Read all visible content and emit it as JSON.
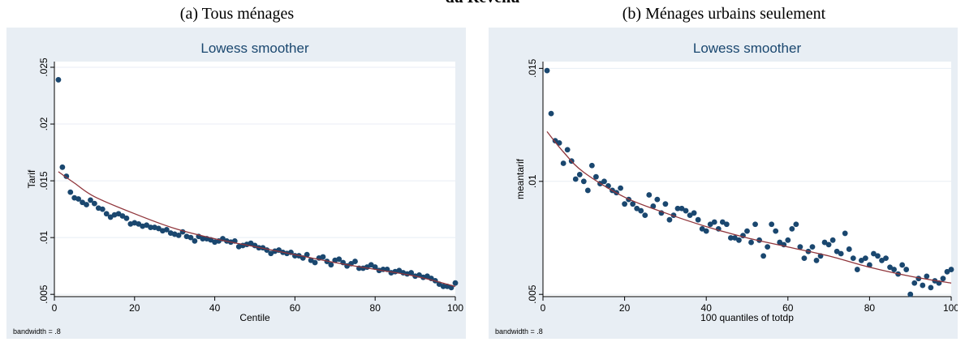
{
  "page": {
    "heading": "du Revenu"
  },
  "chart_data": [
    {
      "type": "scatter",
      "caption": "(a) Tous ménages",
      "title": "Lowess smoother",
      "xlabel": "Centile",
      "ylabel": "Tarif",
      "note": "bandwidth = .8",
      "xlim": [
        0,
        100
      ],
      "ylim": [
        0.0048,
        0.0255
      ],
      "xticks": [
        0,
        20,
        40,
        60,
        80,
        100
      ],
      "xtick_labels": [
        "0",
        "20",
        "40",
        "60",
        "80",
        "100"
      ],
      "yticks": [
        0.005,
        0.01,
        0.015,
        0.02,
        0.025
      ],
      "ytick_labels": [
        ".005",
        ".01",
        ".015",
        ".02",
        ".025"
      ],
      "grid": true,
      "colors": {
        "points": "#1a476f",
        "line": "#90353b",
        "title_band": "#e8eef4",
        "panel": "#ffffff"
      },
      "points": [
        [
          1,
          0.0239
        ],
        [
          2,
          0.0162
        ],
        [
          3,
          0.0154
        ],
        [
          4,
          0.014
        ],
        [
          5,
          0.0135
        ],
        [
          6,
          0.0134
        ],
        [
          7,
          0.0131
        ],
        [
          8,
          0.0129
        ],
        [
          9,
          0.0133
        ],
        [
          10,
          0.013
        ],
        [
          11,
          0.0126
        ],
        [
          12,
          0.0125
        ],
        [
          13,
          0.0121
        ],
        [
          14,
          0.0118
        ],
        [
          15,
          0.012
        ],
        [
          16,
          0.0121
        ],
        [
          17,
          0.0119
        ],
        [
          18,
          0.0117
        ],
        [
          19,
          0.0112
        ],
        [
          20,
          0.0113
        ],
        [
          21,
          0.0112
        ],
        [
          22,
          0.011
        ],
        [
          23,
          0.0111
        ],
        [
          24,
          0.0109
        ],
        [
          25,
          0.0109
        ],
        [
          26,
          0.0108
        ],
        [
          27,
          0.0106
        ],
        [
          28,
          0.0107
        ],
        [
          29,
          0.0104
        ],
        [
          30,
          0.0103
        ],
        [
          31,
          0.0102
        ],
        [
          32,
          0.0105
        ],
        [
          33,
          0.0101
        ],
        [
          34,
          0.01
        ],
        [
          35,
          0.0097
        ],
        [
          36,
          0.0101
        ],
        [
          37,
          0.0099
        ],
        [
          38,
          0.0099
        ],
        [
          39,
          0.0098
        ],
        [
          40,
          0.0096
        ],
        [
          41,
          0.0097
        ],
        [
          42,
          0.0099
        ],
        [
          43,
          0.0097
        ],
        [
          44,
          0.0096
        ],
        [
          45,
          0.0097
        ],
        [
          46,
          0.0092
        ],
        [
          47,
          0.0093
        ],
        [
          48,
          0.0094
        ],
        [
          49,
          0.0095
        ],
        [
          50,
          0.0093
        ],
        [
          51,
          0.0091
        ],
        [
          52,
          0.0091
        ],
        [
          53,
          0.0089
        ],
        [
          54,
          0.0086
        ],
        [
          55,
          0.0088
        ],
        [
          56,
          0.0089
        ],
        [
          57,
          0.0087
        ],
        [
          58,
          0.0086
        ],
        [
          59,
          0.0087
        ],
        [
          60,
          0.0084
        ],
        [
          61,
          0.0084
        ],
        [
          62,
          0.0082
        ],
        [
          63,
          0.0085
        ],
        [
          64,
          0.008
        ],
        [
          65,
          0.0078
        ],
        [
          66,
          0.0082
        ],
        [
          67,
          0.0083
        ],
        [
          68,
          0.0079
        ],
        [
          69,
          0.0076
        ],
        [
          70,
          0.008
        ],
        [
          71,
          0.0081
        ],
        [
          72,
          0.0078
        ],
        [
          73,
          0.0075
        ],
        [
          74,
          0.0077
        ],
        [
          75,
          0.0079
        ],
        [
          76,
          0.0073
        ],
        [
          77,
          0.0073
        ],
        [
          78,
          0.0074
        ],
        [
          79,
          0.0076
        ],
        [
          80,
          0.0074
        ],
        [
          81,
          0.0071
        ],
        [
          82,
          0.0072
        ],
        [
          83,
          0.0072
        ],
        [
          84,
          0.0069
        ],
        [
          85,
          0.007
        ],
        [
          86,
          0.0071
        ],
        [
          87,
          0.0069
        ],
        [
          88,
          0.0068
        ],
        [
          89,
          0.0069
        ],
        [
          90,
          0.0066
        ],
        [
          91,
          0.0067
        ],
        [
          92,
          0.0065
        ],
        [
          93,
          0.0066
        ],
        [
          94,
          0.0064
        ],
        [
          95,
          0.0062
        ],
        [
          96,
          0.0059
        ],
        [
          97,
          0.0057
        ],
        [
          98,
          0.0057
        ],
        [
          99,
          0.0056
        ],
        [
          100,
          0.006
        ]
      ],
      "smoother": [
        [
          1,
          0.0158
        ],
        [
          5,
          0.0148
        ],
        [
          10,
          0.0136
        ],
        [
          20,
          0.0121
        ],
        [
          30,
          0.0108
        ],
        [
          40,
          0.0099
        ],
        [
          50,
          0.0092
        ],
        [
          60,
          0.0085
        ],
        [
          70,
          0.0078
        ],
        [
          80,
          0.0072
        ],
        [
          90,
          0.0066
        ],
        [
          100,
          0.0057
        ]
      ]
    },
    {
      "type": "scatter",
      "caption": "(b) Ménages urbains seulement",
      "title": "Lowess smoother",
      "xlabel": "100 quantiles of totdp",
      "ylabel": "meantarif",
      "note": "bandwidth = .8",
      "xlim": [
        0,
        100
      ],
      "ylim": [
        0.0049,
        0.0153
      ],
      "xticks": [
        0,
        20,
        40,
        60,
        80,
        100
      ],
      "xtick_labels": [
        "0",
        "20",
        "40",
        "60",
        "80",
        "100"
      ],
      "yticks": [
        0.005,
        0.01,
        0.015
      ],
      "ytick_labels": [
        ".005",
        ".01",
        ".015"
      ],
      "grid": true,
      "colors": {
        "points": "#1a476f",
        "line": "#90353b",
        "title_band": "#e8eef4",
        "panel": "#ffffff"
      },
      "points": [
        [
          1,
          0.0149
        ],
        [
          2,
          0.013
        ],
        [
          3,
          0.0118
        ],
        [
          4,
          0.0117
        ],
        [
          5,
          0.0108
        ],
        [
          6,
          0.0114
        ],
        [
          7,
          0.0109
        ],
        [
          8,
          0.0101
        ],
        [
          9,
          0.0103
        ],
        [
          10,
          0.01
        ],
        [
          11,
          0.0096
        ],
        [
          12,
          0.0107
        ],
        [
          13,
          0.0102
        ],
        [
          14,
          0.0099
        ],
        [
          15,
          0.01
        ],
        [
          16,
          0.0098
        ],
        [
          17,
          0.0096
        ],
        [
          18,
          0.0095
        ],
        [
          19,
          0.0097
        ],
        [
          20,
          0.009
        ],
        [
          21,
          0.0092
        ],
        [
          22,
          0.009
        ],
        [
          23,
          0.0088
        ],
        [
          24,
          0.0087
        ],
        [
          25,
          0.0085
        ],
        [
          26,
          0.0094
        ],
        [
          27,
          0.0089
        ],
        [
          28,
          0.0092
        ],
        [
          29,
          0.0086
        ],
        [
          30,
          0.009
        ],
        [
          31,
          0.0083
        ],
        [
          32,
          0.0085
        ],
        [
          33,
          0.0088
        ],
        [
          34,
          0.0088
        ],
        [
          35,
          0.0087
        ],
        [
          36,
          0.0085
        ],
        [
          37,
          0.0086
        ],
        [
          38,
          0.0083
        ],
        [
          39,
          0.0079
        ],
        [
          40,
          0.0078
        ],
        [
          41,
          0.0081
        ],
        [
          42,
          0.0082
        ],
        [
          43,
          0.0079
        ],
        [
          44,
          0.0082
        ],
        [
          45,
          0.0081
        ],
        [
          46,
          0.0075
        ],
        [
          47,
          0.0075
        ],
        [
          48,
          0.0074
        ],
        [
          49,
          0.0076
        ],
        [
          50,
          0.0078
        ],
        [
          51,
          0.0073
        ],
        [
          52,
          0.0081
        ],
        [
          53,
          0.0074
        ],
        [
          54,
          0.0067
        ],
        [
          55,
          0.0071
        ],
        [
          56,
          0.0081
        ],
        [
          57,
          0.0078
        ],
        [
          58,
          0.0073
        ],
        [
          59,
          0.0072
        ],
        [
          60,
          0.0074
        ],
        [
          61,
          0.0079
        ],
        [
          62,
          0.0081
        ],
        [
          63,
          0.0071
        ],
        [
          64,
          0.0066
        ],
        [
          65,
          0.0069
        ],
        [
          66,
          0.0071
        ],
        [
          67,
          0.0065
        ],
        [
          68,
          0.0067
        ],
        [
          69,
          0.0073
        ],
        [
          70,
          0.0072
        ],
        [
          71,
          0.0074
        ],
        [
          72,
          0.0069
        ],
        [
          73,
          0.0068
        ],
        [
          74,
          0.0077
        ],
        [
          75,
          0.007
        ],
        [
          76,
          0.0066
        ],
        [
          77,
          0.0061
        ],
        [
          78,
          0.0065
        ],
        [
          79,
          0.0066
        ],
        [
          80,
          0.0063
        ],
        [
          81,
          0.0068
        ],
        [
          82,
          0.0067
        ],
        [
          83,
          0.0065
        ],
        [
          84,
          0.0066
        ],
        [
          85,
          0.0062
        ],
        [
          86,
          0.0061
        ],
        [
          87,
          0.0059
        ],
        [
          88,
          0.0063
        ],
        [
          89,
          0.0061
        ],
        [
          90,
          0.005
        ],
        [
          91,
          0.0055
        ],
        [
          92,
          0.0057
        ],
        [
          93,
          0.0054
        ],
        [
          94,
          0.0058
        ],
        [
          95,
          0.0053
        ],
        [
          96,
          0.0056
        ],
        [
          97,
          0.0055
        ],
        [
          98,
          0.0057
        ],
        [
          99,
          0.006
        ],
        [
          100,
          0.0061
        ]
      ],
      "smoother": [
        [
          1,
          0.0122
        ],
        [
          5,
          0.0113
        ],
        [
          10,
          0.0104
        ],
        [
          20,
          0.0093
        ],
        [
          30,
          0.0086
        ],
        [
          40,
          0.008
        ],
        [
          50,
          0.0075
        ],
        [
          60,
          0.0071
        ],
        [
          70,
          0.0067
        ],
        [
          80,
          0.0062
        ],
        [
          90,
          0.0058
        ],
        [
          100,
          0.0055
        ]
      ]
    }
  ]
}
